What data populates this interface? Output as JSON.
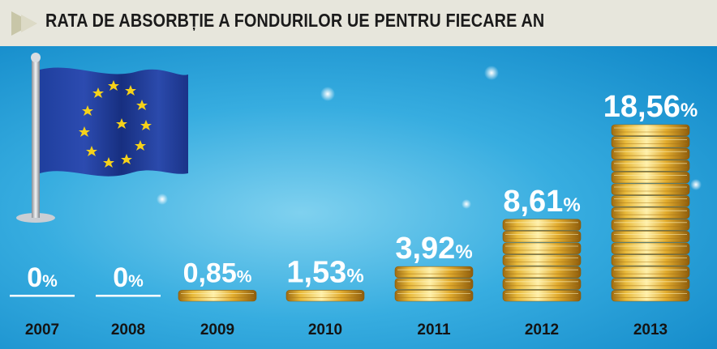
{
  "header": {
    "title": "RATA DE ABSORBȚIE A FONDURILOR UE PENTRU FIECARE AN"
  },
  "colors": {
    "header_bg": "#e7e6dc",
    "panel_bg": "#37ade0",
    "coin": "#e8b93a",
    "label": "#ffffff",
    "year": "#141414"
  },
  "icons": {
    "flag": "eu-flag-icon"
  },
  "chart_data": {
    "type": "bar",
    "title": "RATA DE ABSORBȚIE A FONDURILOR UE PENTRU FIECARE AN",
    "categories": [
      "2007",
      "2008",
      "2009",
      "2010",
      "2011",
      "2012",
      "2013"
    ],
    "values": [
      0,
      0,
      0.85,
      1.53,
      3.92,
      8.61,
      18.56
    ],
    "value_labels": [
      "0",
      "0",
      "0,85",
      "1,53",
      "3,92",
      "8,61",
      "18,56"
    ],
    "unit": "%",
    "xlabel": "",
    "ylabel": ""
  }
}
